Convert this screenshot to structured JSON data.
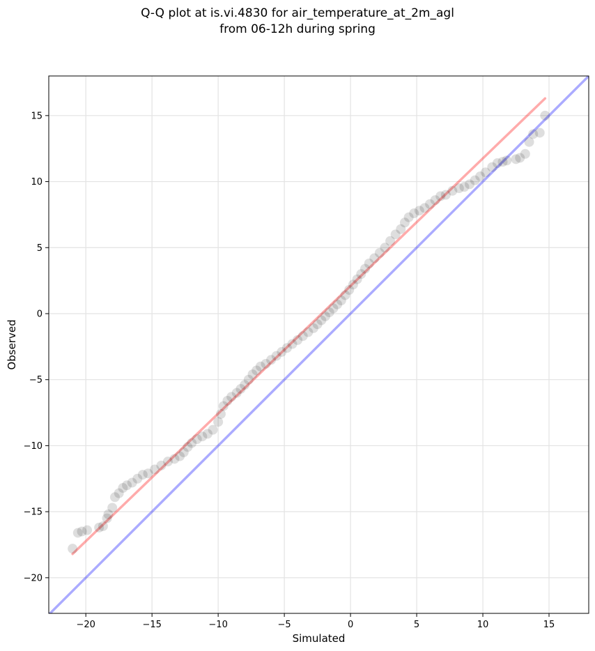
{
  "title_line1": "Q-Q plot at is.vi.4830 for air_temperature_at_2m_agl",
  "title_line2": "from 06-12h during spring",
  "chart_data": {
    "type": "scatter",
    "title": "Q-Q plot at is.vi.4830 for air_temperature_at_2m_agl\nfrom 06-12h during spring",
    "xlabel": "Simulated",
    "ylabel": "Observed",
    "xlim": [
      -22.8,
      18.0
    ],
    "ylim": [
      -22.7,
      18.0
    ],
    "xticks": [
      -20,
      -15,
      -10,
      -5,
      0,
      5,
      10,
      15
    ],
    "yticks": [
      -20,
      -15,
      -10,
      -5,
      0,
      5,
      10,
      15
    ],
    "xtick_labels": [
      "−20",
      "−15",
      "−10",
      "−5",
      "0",
      "5",
      "10",
      "15"
    ],
    "ytick_labels": [
      "−20",
      "−15",
      "−10",
      "−5",
      "0",
      "5",
      "10",
      "15"
    ],
    "grid": true,
    "legend": "none",
    "series": [
      {
        "kind": "quantile-points",
        "color": "#000000",
        "points": [
          [
            -21.0,
            -17.8
          ],
          [
            -20.6,
            -16.6
          ],
          [
            -20.3,
            -16.5
          ],
          [
            -19.9,
            -16.4
          ],
          [
            -19.0,
            -16.2
          ],
          [
            -18.7,
            -16.1
          ],
          [
            -18.4,
            -15.5
          ],
          [
            -18.3,
            -15.2
          ],
          [
            -18.0,
            -14.7
          ],
          [
            -17.8,
            -13.9
          ],
          [
            -17.5,
            -13.6
          ],
          [
            -17.2,
            -13.2
          ],
          [
            -16.9,
            -13.0
          ],
          [
            -16.5,
            -12.8
          ],
          [
            -16.1,
            -12.5
          ],
          [
            -15.7,
            -12.2
          ],
          [
            -15.3,
            -12.1
          ],
          [
            -14.8,
            -11.8
          ],
          [
            -14.3,
            -11.5
          ],
          [
            -13.8,
            -11.2
          ],
          [
            -13.3,
            -11.0
          ],
          [
            -12.9,
            -10.8
          ],
          [
            -12.6,
            -10.5
          ],
          [
            -12.3,
            -10.1
          ],
          [
            -12.0,
            -9.8
          ],
          [
            -11.6,
            -9.5
          ],
          [
            -11.2,
            -9.3
          ],
          [
            -10.8,
            -9.1
          ],
          [
            -10.4,
            -8.8
          ],
          [
            -10.0,
            -8.2
          ],
          [
            -9.8,
            -7.6
          ],
          [
            -9.6,
            -7.0
          ],
          [
            -9.3,
            -6.6
          ],
          [
            -9.0,
            -6.3
          ],
          [
            -8.6,
            -6.0
          ],
          [
            -8.3,
            -5.7
          ],
          [
            -8.0,
            -5.4
          ],
          [
            -7.7,
            -5.0
          ],
          [
            -7.4,
            -4.6
          ],
          [
            -7.1,
            -4.3
          ],
          [
            -6.8,
            -4.0
          ],
          [
            -6.4,
            -3.8
          ],
          [
            -6.0,
            -3.5
          ],
          [
            -5.6,
            -3.2
          ],
          [
            -5.2,
            -2.9
          ],
          [
            -4.8,
            -2.6
          ],
          [
            -4.4,
            -2.3
          ],
          [
            -4.0,
            -2.0
          ],
          [
            -3.6,
            -1.7
          ],
          [
            -3.2,
            -1.4
          ],
          [
            -2.8,
            -1.1
          ],
          [
            -2.5,
            -0.8
          ],
          [
            -2.2,
            -0.5
          ],
          [
            -1.9,
            -0.2
          ],
          [
            -1.6,
            0.1
          ],
          [
            -1.3,
            0.4
          ],
          [
            -1.0,
            0.7
          ],
          [
            -0.7,
            1.0
          ],
          [
            -0.4,
            1.4
          ],
          [
            -0.1,
            1.8
          ],
          [
            0.2,
            2.2
          ],
          [
            0.5,
            2.6
          ],
          [
            0.8,
            3.0
          ],
          [
            1.1,
            3.4
          ],
          [
            1.4,
            3.8
          ],
          [
            1.8,
            4.2
          ],
          [
            2.2,
            4.6
          ],
          [
            2.6,
            5.0
          ],
          [
            3.0,
            5.5
          ],
          [
            3.4,
            6.0
          ],
          [
            3.8,
            6.4
          ],
          [
            4.1,
            6.9
          ],
          [
            4.4,
            7.3
          ],
          [
            4.8,
            7.6
          ],
          [
            5.2,
            7.8
          ],
          [
            5.6,
            8.0
          ],
          [
            6.0,
            8.3
          ],
          [
            6.4,
            8.6
          ],
          [
            6.8,
            8.9
          ],
          [
            7.2,
            9.0
          ],
          [
            7.7,
            9.3
          ],
          [
            8.2,
            9.5
          ],
          [
            8.6,
            9.6
          ],
          [
            9.0,
            9.8
          ],
          [
            9.4,
            10.1
          ],
          [
            9.8,
            10.4
          ],
          [
            10.2,
            10.7
          ],
          [
            10.7,
            11.1
          ],
          [
            11.1,
            11.4
          ],
          [
            11.5,
            11.5
          ],
          [
            11.8,
            11.6
          ],
          [
            12.5,
            11.7
          ],
          [
            12.8,
            11.8
          ],
          [
            13.2,
            12.1
          ],
          [
            13.5,
            13.0
          ],
          [
            13.8,
            13.6
          ],
          [
            14.3,
            13.7
          ],
          [
            14.7,
            15.0
          ]
        ]
      },
      {
        "kind": "fit-line",
        "color": "#ff0000",
        "points": [
          [
            -21.0,
            -18.2
          ],
          [
            14.7,
            16.3
          ]
        ]
      },
      {
        "kind": "one-to-one-line",
        "color": "#0000ff",
        "points": [
          [
            -22.8,
            -22.8
          ],
          [
            18.0,
            18.0
          ]
        ]
      }
    ]
  }
}
